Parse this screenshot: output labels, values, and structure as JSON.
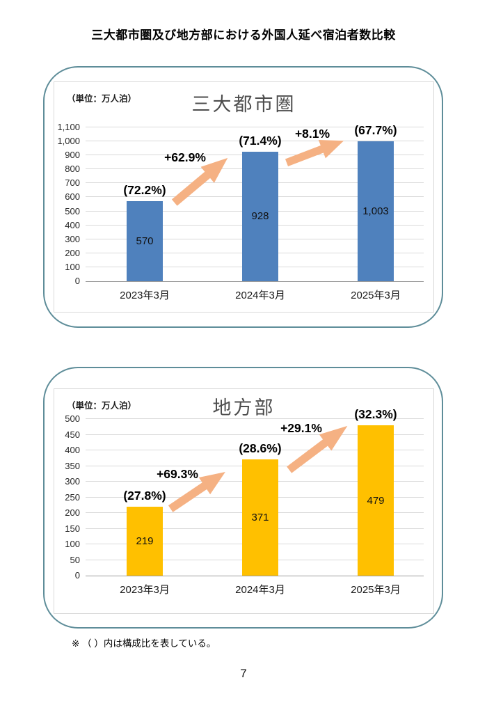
{
  "page": {
    "title": "三大都市圏及び地方部における外国人延べ宿泊者数比較",
    "footnote": "※ （ ）内は構成比を表している。",
    "page_number": "7"
  },
  "chart_data": [
    {
      "type": "bar",
      "title": "三大都市圏",
      "unit_label": "（単位：万人泊）",
      "categories": [
        "2023年3月",
        "2024年3月",
        "2025年3月"
      ],
      "values": [
        570,
        928,
        1003
      ],
      "value_labels": [
        "570",
        "928",
        "1,003"
      ],
      "share_labels": [
        "(72.2%)",
        "(71.4%)",
        "(67.7%)"
      ],
      "growth_labels": [
        "+62.9%",
        "+8.1%"
      ],
      "ylabel": "",
      "xlabel": "",
      "ylim": [
        0,
        1100
      ],
      "ytick_step": 100,
      "grid": true,
      "legend": "none",
      "bar_color": "#4F81BD"
    },
    {
      "type": "bar",
      "title": "地方部",
      "unit_label": "（単位：万人泊）",
      "categories": [
        "2023年3月",
        "2024年3月",
        "2025年3月"
      ],
      "values": [
        219,
        371,
        479
      ],
      "value_labels": [
        "219",
        "371",
        "479"
      ],
      "share_labels": [
        "(27.8%)",
        "(28.6%)",
        "(32.3%)"
      ],
      "growth_labels": [
        "+69.3%",
        "+29.1%"
      ],
      "ylabel": "",
      "xlabel": "",
      "ylim": [
        0,
        500
      ],
      "ytick_step": 50,
      "grid": true,
      "legend": "none",
      "bar_color": "#FFC000"
    }
  ],
  "colors": {
    "arrow": "#F5B183",
    "panel_border": "#5E8D99",
    "bar_blue": "#4F81BD",
    "bar_yellow": "#FFC000",
    "gridline": "#D9D9D9"
  }
}
